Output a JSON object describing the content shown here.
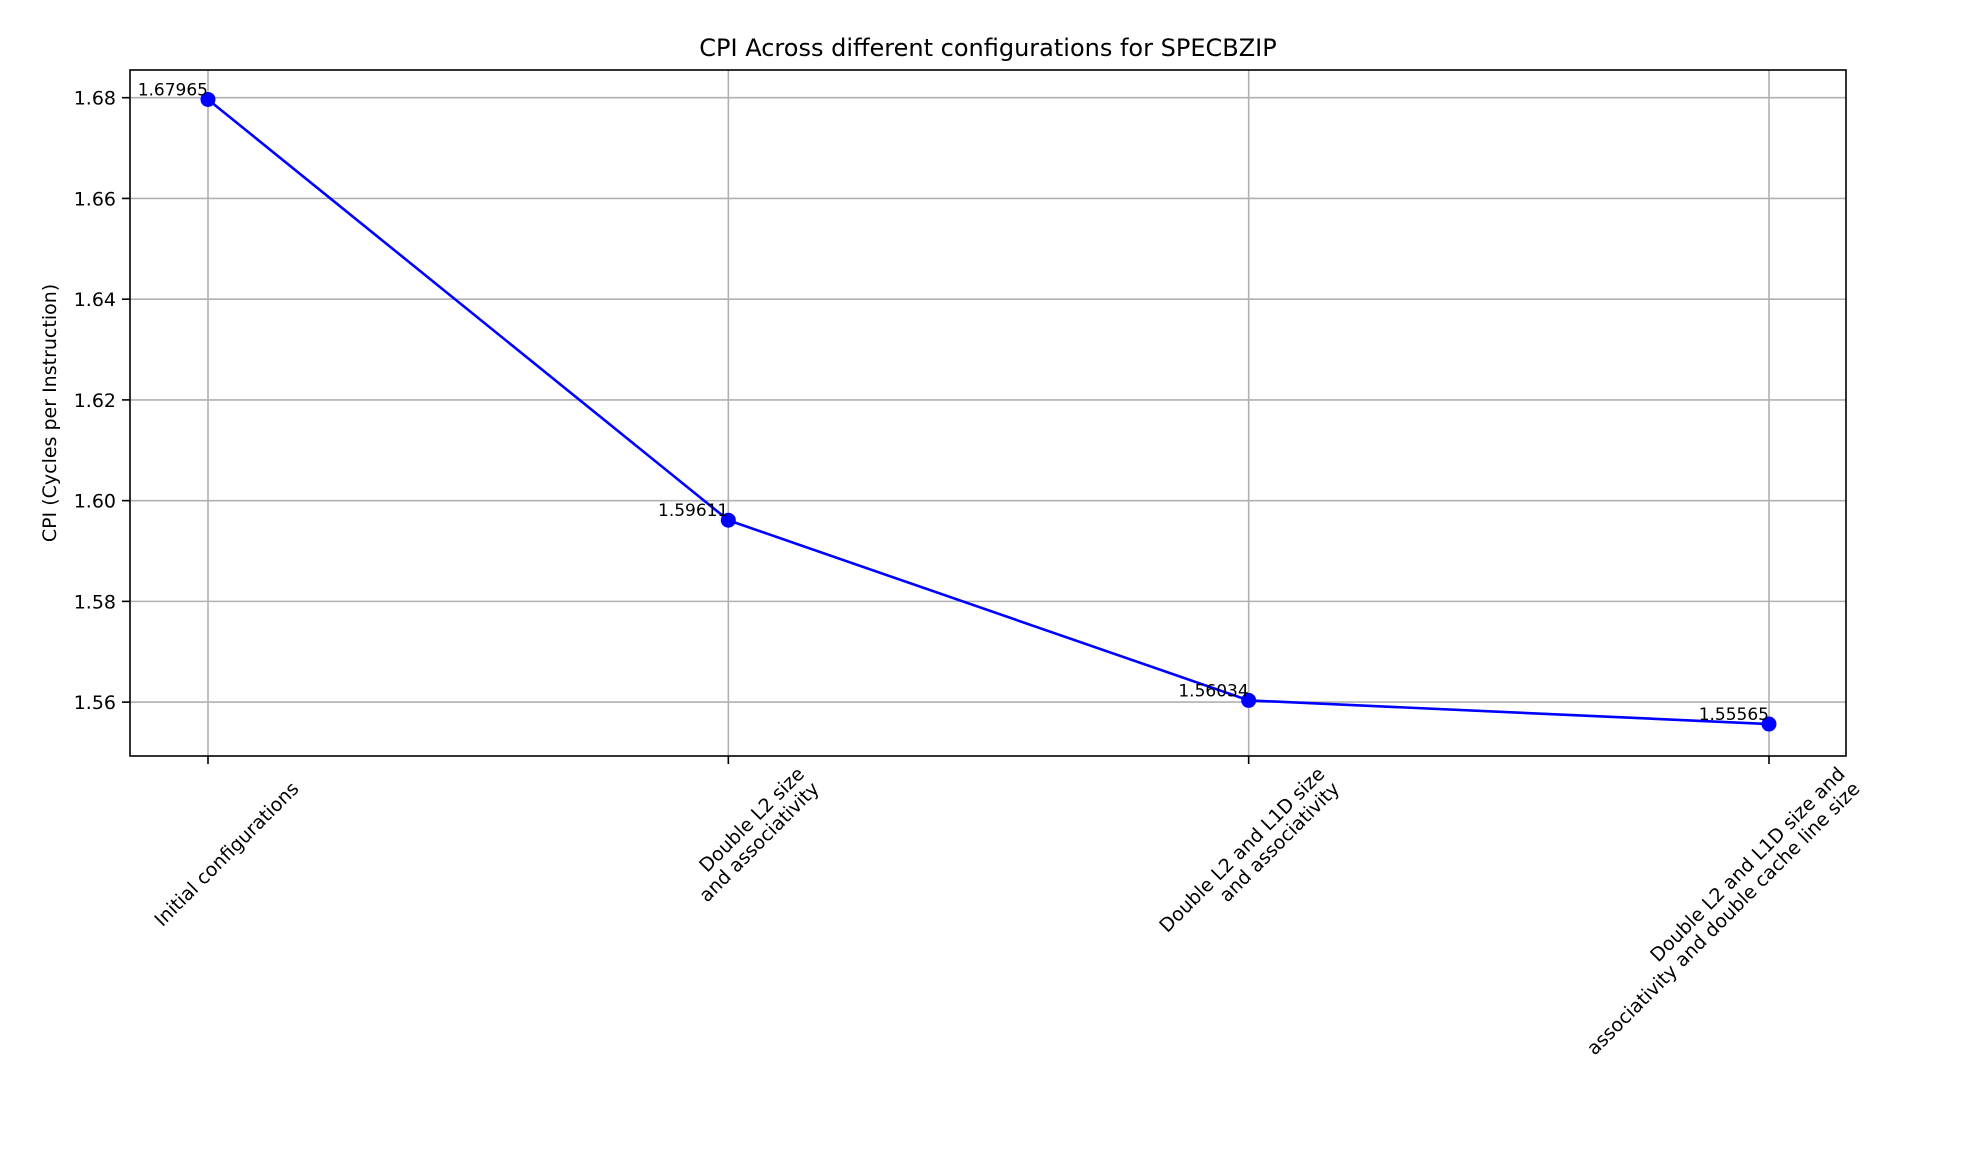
{
  "chart_data": {
    "type": "line",
    "title": "CPI Across different configurations for SPECBZIP",
    "xlabel": "",
    "ylabel": "CPI (Cycles per Instruction)",
    "categories": [
      [
        "Initial configurations"
      ],
      [
        "Double L2 size",
        "and associativity"
      ],
      [
        "Double L2 and L1D size",
        "and associativity"
      ],
      [
        "Double L2 and L1D size and",
        "associativity and double cache line size"
      ]
    ],
    "series": [
      {
        "values": [
          1.67965,
          1.59611,
          1.56034,
          1.55565
        ],
        "color": "#0000ff",
        "marker": "circle"
      }
    ],
    "data_labels": [
      "1.67965",
      "1.59611",
      "1.56034",
      "1.55565"
    ],
    "ylim": [
      1.5493,
      1.6855
    ],
    "yticks": [
      1.56,
      1.58,
      1.6,
      1.62,
      1.64,
      1.66,
      1.68
    ],
    "ytick_labels": [
      "1.56",
      "1.58",
      "1.60",
      "1.62",
      "1.64",
      "1.66",
      "1.68"
    ],
    "grid": true,
    "legend": "none"
  }
}
